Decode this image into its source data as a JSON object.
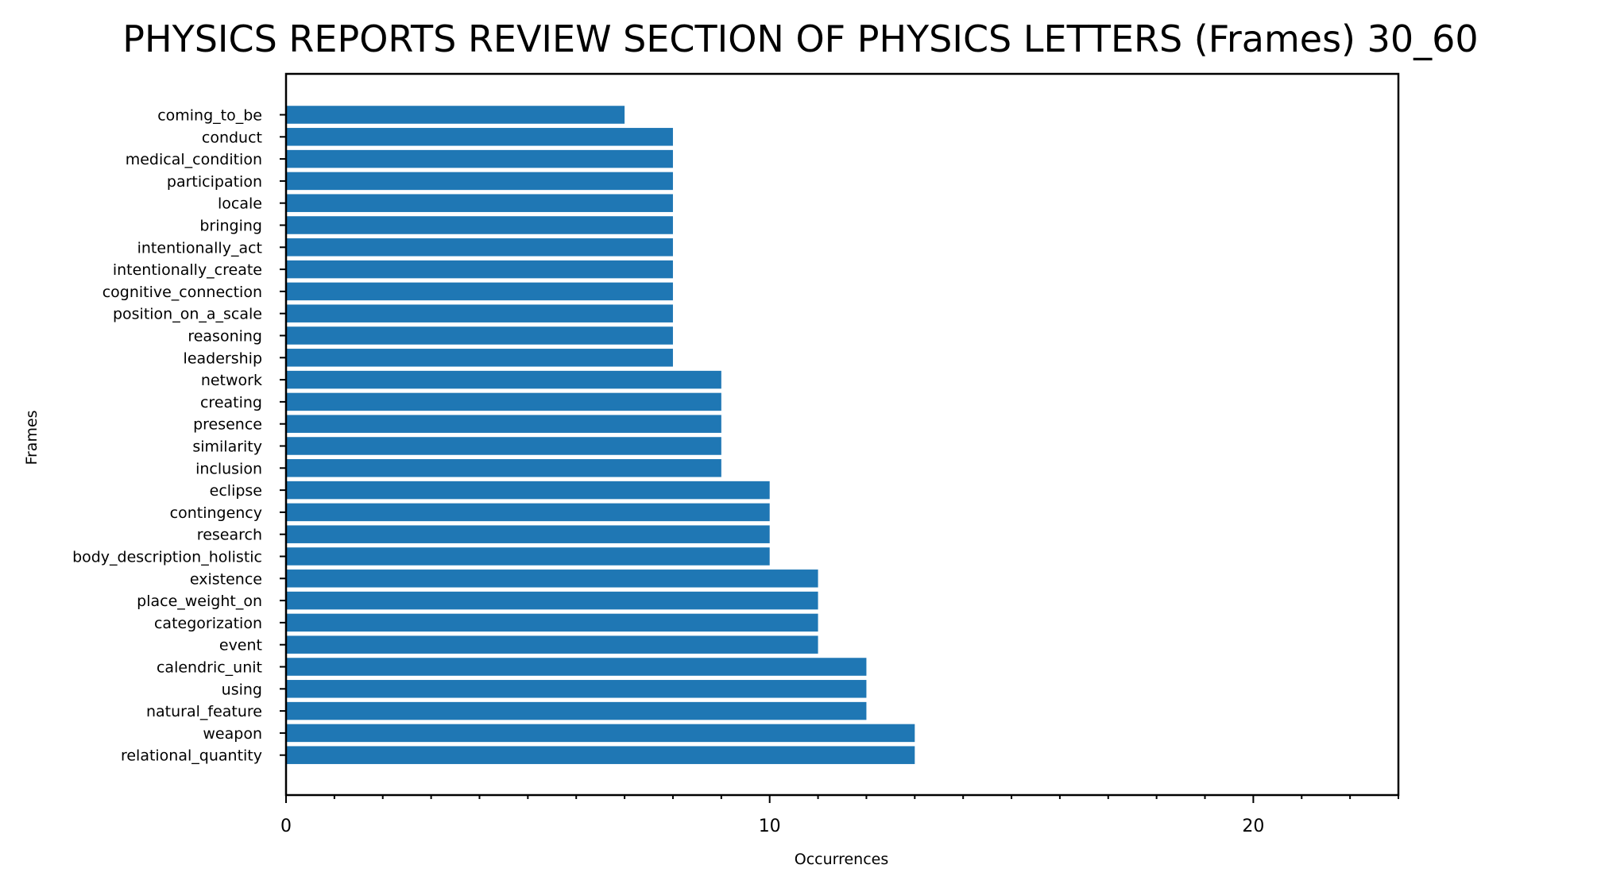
{
  "chart_data": {
    "type": "bar",
    "orientation": "horizontal",
    "title": "PHYSICS REPORTS REVIEW SECTION OF PHYSICS LETTERS (Frames) 30_60",
    "xlabel": "Occurrences",
    "ylabel": "Frames",
    "xlim": [
      0,
      23
    ],
    "xticks": [
      0,
      10,
      20
    ],
    "grid": false,
    "legend": "none",
    "bar_color": "#1f77b4",
    "categories": [
      "coming_to_be",
      "conduct",
      "medical_condition",
      "participation",
      "locale",
      "bringing",
      "intentionally_act",
      "intentionally_create",
      "cognitive_connection",
      "position_on_a_scale",
      "reasoning",
      "leadership",
      "network",
      "creating",
      "presence",
      "similarity",
      "inclusion",
      "eclipse",
      "contingency",
      "research",
      "body_description_holistic",
      "existence",
      "place_weight_on",
      "categorization",
      "event",
      "calendric_unit",
      "using",
      "natural_feature",
      "weapon",
      "relational_quantity"
    ],
    "values": [
      7,
      8,
      8,
      8,
      8,
      8,
      8,
      8,
      8,
      8,
      8,
      8,
      9,
      9,
      9,
      9,
      9,
      10,
      10,
      10,
      10,
      11,
      11,
      11,
      11,
      12,
      12,
      12,
      13,
      13
    ]
  }
}
